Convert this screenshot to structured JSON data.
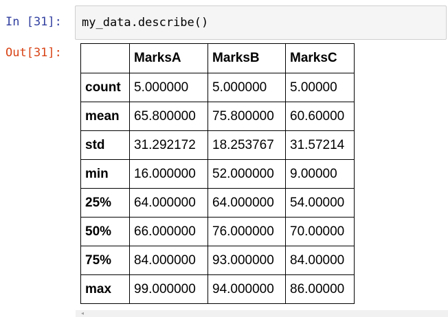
{
  "cell": {
    "input_prompt": "In [31]:",
    "input_code": "my_data.describe()",
    "output_prompt": "Out[31]:"
  },
  "table": {
    "columns": [
      "",
      "MarksA",
      "MarksB",
      "MarksC"
    ],
    "rows": [
      {
        "label": "count",
        "values": [
          "5.000000",
          "5.000000",
          "5.00000"
        ]
      },
      {
        "label": "mean",
        "values": [
          "65.800000",
          "75.800000",
          "60.60000"
        ]
      },
      {
        "label": "std",
        "values": [
          "31.292172",
          "18.253767",
          "31.57214"
        ]
      },
      {
        "label": "min",
        "values": [
          "16.000000",
          "52.000000",
          "9.00000"
        ]
      },
      {
        "label": "25%",
        "values": [
          "64.000000",
          "64.000000",
          "54.00000"
        ]
      },
      {
        "label": "50%",
        "values": [
          "66.000000",
          "76.000000",
          "70.00000"
        ]
      },
      {
        "label": "75%",
        "values": [
          "84.000000",
          "93.000000",
          "84.00000"
        ]
      },
      {
        "label": "max",
        "values": [
          "99.000000",
          "94.000000",
          "86.00000"
        ]
      }
    ]
  },
  "icons": {
    "scroll_left": "scroll-left-arrow-icon",
    "scroll_left_glyph": "◂"
  },
  "colors": {
    "input_prompt": "#303f9f",
    "output_prompt": "#d84315",
    "input_background": "#f5f5f5"
  }
}
